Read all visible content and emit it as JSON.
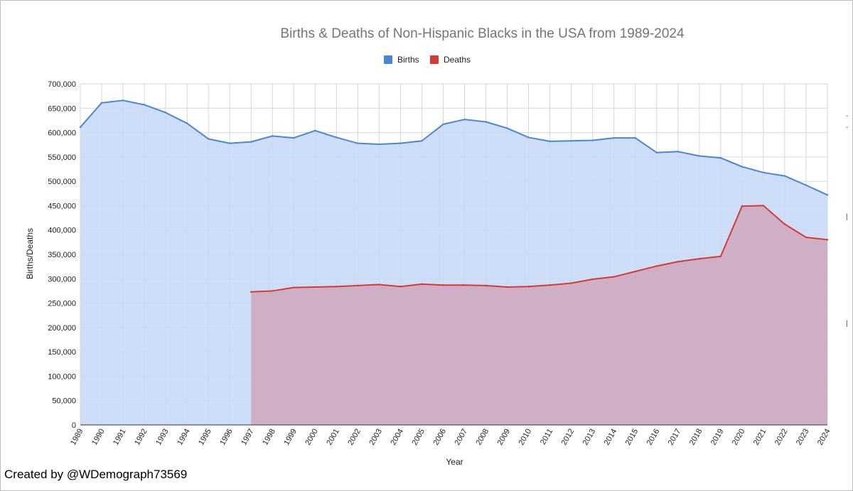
{
  "chart_data": {
    "type": "area",
    "title": "Births & Deaths of Non-Hispanic Blacks in the USA from 1989-2024",
    "xlabel": "Year",
    "ylabel": "Births/Deaths",
    "ylim": [
      0,
      700000
    ],
    "yticks": [
      0,
      50000,
      100000,
      150000,
      200000,
      250000,
      300000,
      350000,
      400000,
      450000,
      500000,
      550000,
      600000,
      650000,
      700000
    ],
    "ytick_labels": [
      "0",
      "50,000",
      "100,000",
      "150,000",
      "200,000",
      "250,000",
      "300,000",
      "350,000",
      "400,000",
      "450,000",
      "500,000",
      "550,000",
      "600,000",
      "650,000",
      "700,000"
    ],
    "grid": true,
    "legend_position": "top-center",
    "categories": [
      "1989",
      "1990",
      "1991",
      "1992",
      "1993",
      "1994",
      "1995",
      "1996",
      "1997",
      "1998",
      "1999",
      "2000",
      "2001",
      "2002",
      "2003",
      "2004",
      "2005",
      "2006",
      "2007",
      "2008",
      "2009",
      "2010",
      "2011",
      "2012",
      "2013",
      "2014",
      "2015",
      "2016",
      "2017",
      "2018",
      "2019",
      "2020",
      "2021",
      "2022",
      "2023",
      "2024"
    ],
    "series": [
      {
        "name": "Births",
        "color": "#4a86d6",
        "fill": "#c7daf8",
        "values": [
          611000,
          661000,
          666000,
          657000,
          641000,
          619000,
          587000,
          578000,
          581000,
          593000,
          589000,
          604000,
          590000,
          578000,
          576000,
          578000,
          583000,
          617000,
          627000,
          622000,
          609000,
          590000,
          582000,
          583000,
          584000,
          589000,
          589000,
          559000,
          561000,
          552000,
          548000,
          530000,
          518000,
          511000,
          492000,
          472000
        ]
      },
      {
        "name": "Deaths",
        "color": "#d63b33",
        "fill": "#cfa8bd",
        "values": [
          null,
          null,
          null,
          null,
          null,
          null,
          null,
          null,
          273000,
          275000,
          282000,
          283000,
          284000,
          286000,
          288000,
          284000,
          289000,
          287000,
          287000,
          286000,
          283000,
          284000,
          287000,
          291000,
          299000,
          304000,
          315000,
          326000,
          335000,
          341000,
          346000,
          449000,
          450000,
          412000,
          385000,
          380000
        ]
      }
    ]
  },
  "footer": {
    "credit": "Created by @WDemograph73569"
  }
}
